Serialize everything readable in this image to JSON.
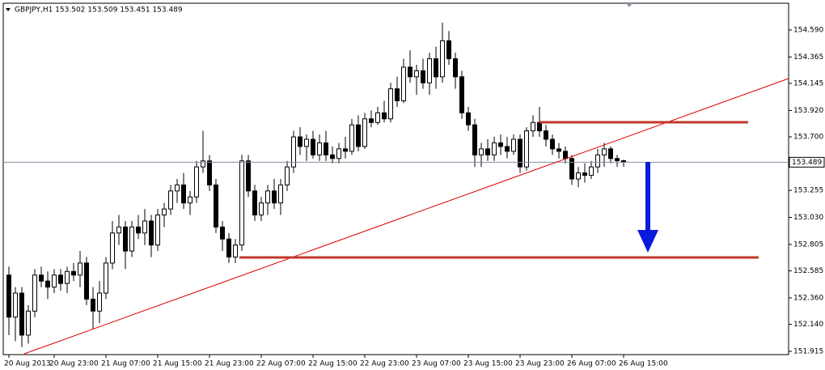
{
  "chart_data": {
    "type": "candlestick",
    "title": "GBPJPY,H1  153.502 153.509 153.451 153.489",
    "categories": [
      "20 Aug 2013",
      null,
      null,
      null,
      null,
      null,
      null,
      "20 Aug 23:00",
      null,
      null,
      null,
      null,
      null,
      null,
      null,
      "21 Aug 07:00",
      null,
      null,
      null,
      null,
      null,
      null,
      null,
      "21 Aug 15:00",
      null,
      null,
      null,
      null,
      null,
      null,
      null,
      "21 Aug 23:00",
      null,
      null,
      null,
      null,
      null,
      null,
      null,
      "22 Aug 07:00",
      null,
      null,
      null,
      null,
      null,
      null,
      null,
      "22 Aug 15:00",
      null,
      null,
      null,
      null,
      null,
      null,
      null,
      "22 Aug 23:00",
      null,
      null,
      null,
      null,
      null,
      null,
      null,
      "23 Aug 07:00",
      null,
      null,
      null,
      null,
      null,
      null,
      null,
      "23 Aug 15:00",
      null,
      null,
      null,
      null,
      null,
      null,
      null,
      "23 Aug 23:00",
      null,
      null,
      null,
      null,
      null,
      null,
      null,
      "26 Aug 07:00",
      null,
      null,
      null,
      null,
      null,
      null,
      null,
      "26 Aug 15:00"
    ],
    "ohlc": [
      [
        152.55,
        152.62,
        152.05,
        152.2
      ],
      [
        152.2,
        152.45,
        152.0,
        152.4
      ],
      [
        152.4,
        152.45,
        151.95,
        152.05
      ],
      [
        152.05,
        152.3,
        151.98,
        152.25
      ],
      [
        152.25,
        152.6,
        152.2,
        152.55
      ],
      [
        152.55,
        152.62,
        152.45,
        152.5
      ],
      [
        152.5,
        152.58,
        152.35,
        152.45
      ],
      [
        152.45,
        152.6,
        152.4,
        152.55
      ],
      [
        152.55,
        152.6,
        152.42,
        152.48
      ],
      [
        152.48,
        152.62,
        152.4,
        152.58
      ],
      [
        152.58,
        152.65,
        152.5,
        152.55
      ],
      [
        152.55,
        152.75,
        152.45,
        152.65
      ],
      [
        152.65,
        152.7,
        152.3,
        152.35
      ],
      [
        152.35,
        152.45,
        152.1,
        152.25
      ],
      [
        152.25,
        152.5,
        152.15,
        152.4
      ],
      [
        152.4,
        152.7,
        152.35,
        152.65
      ],
      [
        152.65,
        153.0,
        152.6,
        152.9
      ],
      [
        152.9,
        153.05,
        152.8,
        152.95
      ],
      [
        152.95,
        153.0,
        152.6,
        152.75
      ],
      [
        152.75,
        153.0,
        152.7,
        152.95
      ],
      [
        152.95,
        153.05,
        152.85,
        152.9
      ],
      [
        152.9,
        153.1,
        152.8,
        153.0
      ],
      [
        153.0,
        153.05,
        152.7,
        152.8
      ],
      [
        152.8,
        153.1,
        152.75,
        153.05
      ],
      [
        153.05,
        153.15,
        152.95,
        153.1
      ],
      [
        153.1,
        153.3,
        153.05,
        153.25
      ],
      [
        153.25,
        153.35,
        153.15,
        153.3
      ],
      [
        153.3,
        153.4,
        153.1,
        153.15
      ],
      [
        153.15,
        153.25,
        153.05,
        153.2
      ],
      [
        153.2,
        153.5,
        153.15,
        153.45
      ],
      [
        153.45,
        153.75,
        153.4,
        153.5
      ],
      [
        153.5,
        153.55,
        153.25,
        153.3
      ],
      [
        153.3,
        153.35,
        152.9,
        152.95
      ],
      [
        152.95,
        153.0,
        152.75,
        152.85
      ],
      [
        152.85,
        152.9,
        152.65,
        152.7
      ],
      [
        152.7,
        152.85,
        152.65,
        152.8
      ],
      [
        152.8,
        153.55,
        152.75,
        153.5
      ],
      [
        153.5,
        153.55,
        153.2,
        153.25
      ],
      [
        153.25,
        153.3,
        153.0,
        153.05
      ],
      [
        153.05,
        153.2,
        153.0,
        153.15
      ],
      [
        153.15,
        153.3,
        153.05,
        153.25
      ],
      [
        153.25,
        153.35,
        153.1,
        153.15
      ],
      [
        153.15,
        153.35,
        153.05,
        153.3
      ],
      [
        153.3,
        153.5,
        153.25,
        153.45
      ],
      [
        153.45,
        153.75,
        153.4,
        153.7
      ],
      [
        153.7,
        153.78,
        153.55,
        153.62
      ],
      [
        153.62,
        153.72,
        153.5,
        153.68
      ],
      [
        153.68,
        153.75,
        153.52,
        153.55
      ],
      [
        153.55,
        153.72,
        153.5,
        153.65
      ],
      [
        153.65,
        153.75,
        153.5,
        153.55
      ],
      [
        153.55,
        153.62,
        153.48,
        153.52
      ],
      [
        153.52,
        153.65,
        153.48,
        153.6
      ],
      [
        153.6,
        153.7,
        153.52,
        153.58
      ],
      [
        153.58,
        153.85,
        153.55,
        153.8
      ],
      [
        153.8,
        153.88,
        153.58,
        153.62
      ],
      [
        153.62,
        153.9,
        153.6,
        153.85
      ],
      [
        153.85,
        153.92,
        153.78,
        153.82
      ],
      [
        153.82,
        153.95,
        153.8,
        153.9
      ],
      [
        153.9,
        154.0,
        153.82,
        153.85
      ],
      [
        153.85,
        154.15,
        153.82,
        154.1
      ],
      [
        154.1,
        154.2,
        153.95,
        154.0
      ],
      [
        154.0,
        154.35,
        153.98,
        154.28
      ],
      [
        154.28,
        154.42,
        154.15,
        154.2
      ],
      [
        154.2,
        154.3,
        154.05,
        154.25
      ],
      [
        154.25,
        154.35,
        154.1,
        154.15
      ],
      [
        154.15,
        154.4,
        154.05,
        154.35
      ],
      [
        154.35,
        154.45,
        154.1,
        154.2
      ],
      [
        154.2,
        154.65,
        154.15,
        154.5
      ],
      [
        154.5,
        154.58,
        154.3,
        154.35
      ],
      [
        154.35,
        154.4,
        154.1,
        154.2
      ],
      [
        154.2,
        154.25,
        153.85,
        153.9
      ],
      [
        153.9,
        153.95,
        153.75,
        153.8
      ],
      [
        153.8,
        153.85,
        153.45,
        153.55
      ],
      [
        153.55,
        153.65,
        153.45,
        153.6
      ],
      [
        153.6,
        153.68,
        153.5,
        153.55
      ],
      [
        153.55,
        153.7,
        153.5,
        153.65
      ],
      [
        153.65,
        153.72,
        153.55,
        153.62
      ],
      [
        153.62,
        153.7,
        153.52,
        153.58
      ],
      [
        153.58,
        153.72,
        153.55,
        153.68
      ],
      [
        153.68,
        153.72,
        153.4,
        153.45
      ],
      [
        153.45,
        153.78,
        153.42,
        153.75
      ],
      [
        153.75,
        153.88,
        153.7,
        153.82
      ],
      [
        153.82,
        153.95,
        153.7,
        153.75
      ],
      [
        153.75,
        153.8,
        153.62,
        153.68
      ],
      [
        153.68,
        153.72,
        153.55,
        153.6
      ],
      [
        153.6,
        153.65,
        153.52,
        153.58
      ],
      [
        153.58,
        153.62,
        153.48,
        153.52
      ],
      [
        153.52,
        153.55,
        153.3,
        153.35
      ],
      [
        153.35,
        153.45,
        153.28,
        153.4
      ],
      [
        153.4,
        153.48,
        153.32,
        153.38
      ],
      [
        153.38,
        153.5,
        153.35,
        153.45
      ],
      [
        153.45,
        153.6,
        153.4,
        153.55
      ],
      [
        153.55,
        153.65,
        153.45,
        153.6
      ],
      [
        153.6,
        153.62,
        153.48,
        153.52
      ],
      [
        153.52,
        153.55,
        153.45,
        153.502
      ],
      [
        153.502,
        153.509,
        153.451,
        153.489
      ]
    ],
    "ylim": [
      151.888,
      154.812
    ],
    "yticks": [
      {
        "value": 154.59,
        "label": "154.590"
      },
      154.365,
      154.145,
      {
        "value": 153.92,
        "label": "153.920"
      },
      {
        "value": 153.7,
        "label": "153.700"
      },
      153.255,
      {
        "value": 153.03,
        "label": "153.030"
      },
      152.805,
      152.585,
      {
        "value": 152.36,
        "label": "152.360"
      },
      {
        "value": 152.14,
        "label": "152.140"
      },
      151.915
    ]
  }
}
